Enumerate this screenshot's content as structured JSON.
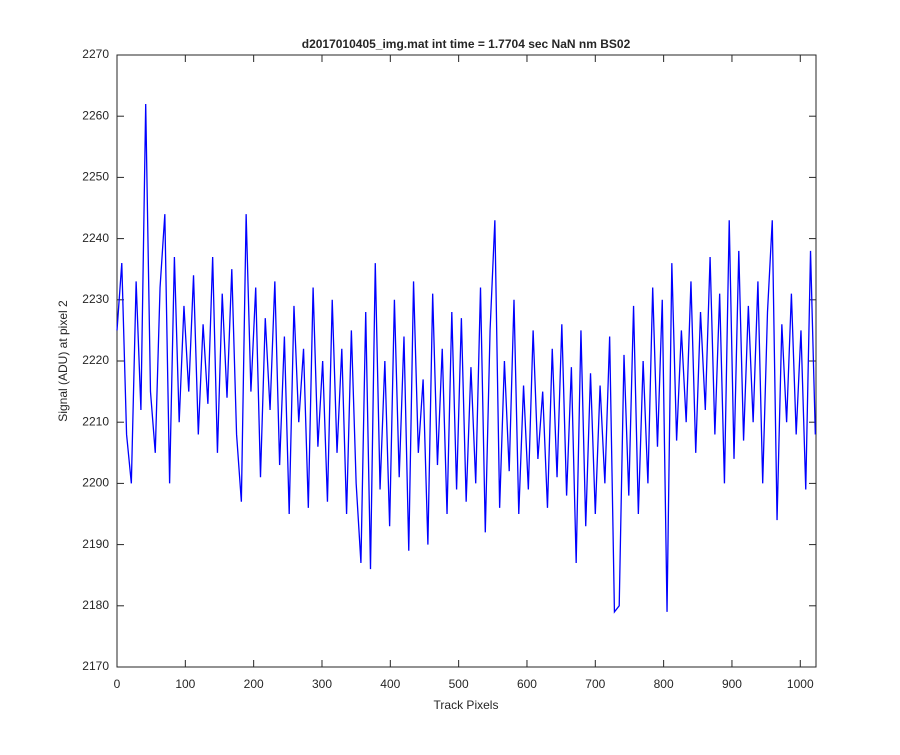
{
  "chart_data": {
    "type": "line",
    "title": "d2017010405_img.mat int time = 1.7704 sec  NaN nm BS02",
    "x_label": "Track Pixels",
    "y_label": "Signal (ADU) at pixel 2",
    "color": "#0000ff",
    "grid": false,
    "xlim": [
      0,
      1023
    ],
    "ylim": [
      2170,
      2270
    ],
    "xticks": [
      0,
      100,
      200,
      300,
      400,
      500,
      600,
      700,
      800,
      900,
      1000
    ],
    "yticks": [
      2170,
      2180,
      2190,
      2200,
      2210,
      2220,
      2230,
      2240,
      2250,
      2260,
      2270
    ],
    "x": [
      0,
      7,
      14,
      21,
      28,
      35,
      42,
      49,
      56,
      63,
      70,
      77,
      84,
      91,
      98,
      105,
      112,
      119,
      126,
      133,
      140,
      147,
      154,
      161,
      168,
      175,
      182,
      189,
      196,
      203,
      210,
      217,
      224,
      231,
      238,
      245,
      252,
      259,
      266,
      273,
      280,
      287,
      294,
      301,
      308,
      315,
      322,
      329,
      336,
      343,
      350,
      357,
      364,
      371,
      378,
      385,
      392,
      399,
      406,
      413,
      420,
      427,
      434,
      441,
      448,
      455,
      462,
      469,
      476,
      483,
      490,
      497,
      504,
      511,
      518,
      525,
      532,
      539,
      546,
      553,
      560,
      567,
      574,
      581,
      588,
      595,
      602,
      609,
      616,
      623,
      630,
      637,
      644,
      651,
      658,
      665,
      672,
      679,
      686,
      693,
      700,
      707,
      714,
      721,
      728,
      735,
      742,
      749,
      756,
      763,
      770,
      777,
      784,
      791,
      798,
      805,
      812,
      819,
      826,
      833,
      840,
      847,
      854,
      861,
      868,
      875,
      882,
      889,
      896,
      903,
      910,
      917,
      924,
      931,
      938,
      945,
      952,
      959,
      966,
      973,
      980,
      987,
      994,
      1001,
      1008,
      1015,
      1022
    ],
    "values": [
      2225,
      2236,
      2208,
      2200,
      2233,
      2212,
      2262,
      2215,
      2205,
      2232,
      2244,
      2200,
      2237,
      2210,
      2229,
      2215,
      2234,
      2208,
      2226,
      2213,
      2237,
      2205,
      2231,
      2214,
      2235,
      2208,
      2197,
      2244,
      2215,
      2232,
      2201,
      2227,
      2212,
      2233,
      2203,
      2224,
      2195,
      2229,
      2210,
      2222,
      2196,
      2232,
      2206,
      2220,
      2197,
      2230,
      2205,
      2222,
      2195,
      2225,
      2200,
      2187,
      2228,
      2186,
      2236,
      2199,
      2220,
      2193,
      2230,
      2201,
      2224,
      2189,
      2233,
      2205,
      2217,
      2190,
      2231,
      2203,
      2222,
      2195,
      2228,
      2199,
      2227,
      2197,
      2219,
      2200,
      2232,
      2192,
      2225,
      2243,
      2196,
      2220,
      2202,
      2230,
      2195,
      2216,
      2199,
      2225,
      2204,
      2215,
      2196,
      2222,
      2201,
      2226,
      2198,
      2219,
      2187,
      2225,
      2193,
      2218,
      2195,
      2216,
      2200,
      2224,
      2179,
      2180,
      2221,
      2198,
      2229,
      2195,
      2220,
      2200,
      2232,
      2206,
      2230,
      2179,
      2236,
      2207,
      2225,
      2210,
      2233,
      2205,
      2228,
      2212,
      2237,
      2208,
      2231,
      2200,
      2243,
      2204,
      2238,
      2207,
      2229,
      2210,
      2233,
      2200,
      2228,
      2243,
      2194,
      2226,
      2210,
      2231,
      2208,
      2225,
      2199,
      2238,
      2208
    ]
  }
}
